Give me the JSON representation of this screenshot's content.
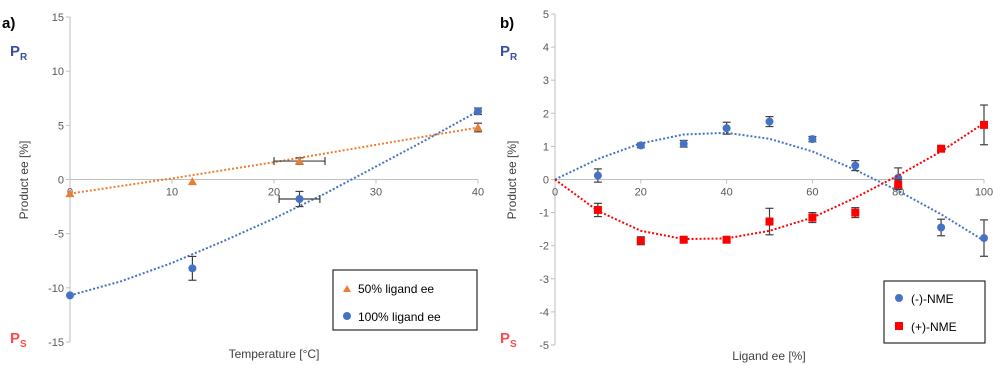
{
  "panels": [
    {
      "panel_label": "a)",
      "top_marker": {
        "main": "P",
        "sub": "R"
      },
      "bottom_marker": {
        "main": "P",
        "sub": "S"
      },
      "colors": {
        "top_marker": "#3a4fa3",
        "bottom_marker": "#ff4a4a"
      }
    },
    {
      "panel_label": "b)",
      "top_marker": {
        "main": "P",
        "sub": "R"
      },
      "bottom_marker": {
        "main": "P",
        "sub": "S"
      },
      "colors": {
        "top_marker": "#3a4fa3",
        "bottom_marker": "#ff4a4a"
      }
    }
  ],
  "chart_data": [
    {
      "type": "scatter",
      "title": "",
      "xlabel": "Temperature [°C]",
      "ylabel": "Product ee [%]",
      "xlim": [
        0,
        40
      ],
      "ylim": [
        -15,
        15
      ],
      "xticks": [
        0,
        10,
        20,
        30,
        40
      ],
      "yticks": [
        -15,
        -10,
        -5,
        0,
        5,
        10,
        15
      ],
      "grid": false,
      "legend_position": "bottom-right",
      "series": [
        {
          "name": "50% ligand ee",
          "marker": "triangle",
          "color": "#ed7d31",
          "x": [
            0,
            12,
            22.5,
            40
          ],
          "y": [
            -1.3,
            -0.2,
            1.7,
            4.8
          ],
          "x_err": [
            0,
            0,
            2.5,
            0
          ],
          "y_err": [
            0,
            0,
            0.3,
            0.4
          ],
          "trendline": {
            "type": "polynomial",
            "x": [
              0,
              10,
              20,
              30,
              40
            ],
            "y": [
              -1.3,
              0.1,
              1.6,
              3.2,
              4.8
            ]
          }
        },
        {
          "name": "100% ligand ee",
          "marker": "circle",
          "color": "#4472c4",
          "x": [
            0,
            12,
            22.5,
            40
          ],
          "y": [
            -10.7,
            -8.2,
            -1.8,
            6.3
          ],
          "x_err": [
            0,
            0,
            2,
            0
          ],
          "y_err": [
            0,
            1.1,
            0.7,
            0.3
          ],
          "trendline": {
            "type": "polynomial",
            "x": [
              0,
              5,
              10,
              15,
              20,
              25,
              30,
              35,
              40
            ],
            "y": [
              -10.7,
              -9.4,
              -7.7,
              -5.7,
              -3.6,
              -1.3,
              1.2,
              3.7,
              6.3
            ]
          }
        }
      ]
    },
    {
      "type": "scatter",
      "title": "",
      "xlabel": "Ligand ee [%]",
      "ylabel": "Product ee [%]",
      "xlim": [
        0,
        100
      ],
      "ylim": [
        -5,
        5
      ],
      "xticks": [
        0,
        20,
        40,
        60,
        80,
        100
      ],
      "yticks": [
        -5,
        -4,
        -3,
        -2,
        -1,
        0,
        1,
        2,
        3,
        4,
        5
      ],
      "grid": false,
      "legend_position": "bottom-right",
      "series": [
        {
          "name": "(-)-NME",
          "marker": "circle",
          "color": "#4472c4",
          "x": [
            10,
            20,
            30,
            40,
            50,
            60,
            70,
            80,
            90,
            100
          ],
          "y": [
            0.12,
            1.03,
            1.08,
            1.55,
            1.75,
            1.22,
            0.42,
            0.05,
            -1.45,
            -1.77
          ],
          "y_err": [
            0.2,
            0.07,
            0.1,
            0.18,
            0.15,
            0.08,
            0.15,
            0.3,
            0.25,
            0.55
          ],
          "trendline": {
            "type": "polynomial",
            "x": [
              0,
              10,
              20,
              30,
              40,
              50,
              60,
              70,
              80,
              90,
              100
            ],
            "y": [
              0,
              0.62,
              1.09,
              1.36,
              1.41,
              1.23,
              0.85,
              0.29,
              -0.34,
              -1.05,
              -1.85
            ]
          }
        },
        {
          "name": "(+)-NME",
          "marker": "square",
          "color": "#ff0000",
          "x": [
            10,
            20,
            30,
            40,
            50,
            60,
            70,
            80,
            90,
            100
          ],
          "y": [
            -0.92,
            -1.85,
            -1.82,
            -1.82,
            -1.27,
            -1.15,
            -1.0,
            -0.15,
            0.93,
            1.65
          ],
          "y_err": [
            0.2,
            0.12,
            0.06,
            0.05,
            0.4,
            0.15,
            0.15,
            0.15,
            0.07,
            0.6
          ],
          "trendline": {
            "type": "polynomial",
            "x": [
              0,
              10,
              20,
              30,
              40,
              50,
              60,
              70,
              80,
              90,
              100
            ],
            "y": [
              0,
              -0.95,
              -1.55,
              -1.8,
              -1.78,
              -1.55,
              -1.15,
              -0.55,
              0.12,
              0.85,
              1.7
            ]
          }
        }
      ]
    }
  ]
}
